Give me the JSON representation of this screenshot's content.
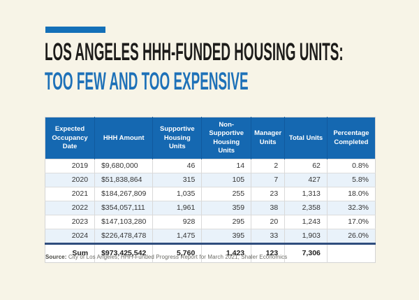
{
  "page": {
    "background_color": "#f7f4e7"
  },
  "header": {
    "accent_bar_color": "#1470b8",
    "title_line1": "LOS ANGELES HHH-FUNDED HOUSING UNITS:",
    "title_line2": "TOO FEW AND TOO EXPENSIVE",
    "title_color": "#1d1c1a",
    "subtitle_color": "#1e71b8"
  },
  "table": {
    "header_bg_color": "#1568b1",
    "header_text_color": "#ffffff",
    "alt_row_bg_color": "#e9f2fa",
    "row_border_color": "#d9d9d9",
    "sum_separator_color": "#2f4d7d",
    "columns": [
      "Expected Occupancy Date",
      "HHH Amount",
      "Supportive Housing Units",
      "Non-Supportive Housing Units",
      "Manager Units",
      "Total Units",
      "Percentage Completed"
    ],
    "rows": [
      [
        "2019",
        "$9,680,000",
        "46",
        "14",
        "2",
        "62",
        "0.8%"
      ],
      [
        "2020",
        "$51,838,864",
        "315",
        "105",
        "7",
        "427",
        "5.8%"
      ],
      [
        "2021",
        "$184,267,809",
        "1,035",
        "255",
        "23",
        "1,313",
        "18.0%"
      ],
      [
        "2022",
        "$354,057,111",
        "1,961",
        "359",
        "38",
        "2,358",
        "32.3%"
      ],
      [
        "2023",
        "$147,103,280",
        "928",
        "295",
        "20",
        "1,243",
        "17.0%"
      ],
      [
        "2024",
        "$226,478,478",
        "1,475",
        "395",
        "33",
        "1,903",
        "26.0%"
      ]
    ],
    "sum_row": [
      "Sum",
      "$973,425,542",
      "5,760",
      "1,423",
      "123",
      "7,306",
      ""
    ]
  },
  "footer": {
    "source_label": "Source:",
    "source_text": "City of Los Angeles, HHH-Funded Progress Report for March 2021, Shaler Economics"
  },
  "chart_data": {
    "type": "table",
    "title": "Los Angeles HHH-Funded Housing Units: Too Few and Too Expensive",
    "columns": [
      "Expected Occupancy Date",
      "HHH Amount",
      "Supportive Housing Units",
      "Non-Supportive Housing Units",
      "Manager Units",
      "Total Units",
      "Percentage Completed"
    ],
    "rows": [
      [
        "2019",
        "$9,680,000",
        46,
        14,
        2,
        62,
        "0.8%"
      ],
      [
        "2020",
        "$51,838,864",
        315,
        105,
        7,
        427,
        "5.8%"
      ],
      [
        "2021",
        "$184,267,809",
        1035,
        255,
        23,
        1313,
        "18.0%"
      ],
      [
        "2022",
        "$354,057,111",
        1961,
        359,
        38,
        2358,
        "32.3%"
      ],
      [
        "2023",
        "$147,103,280",
        928,
        295,
        20,
        1243,
        "17.0%"
      ],
      [
        "2024",
        "$226,478,478",
        1475,
        395,
        33,
        1903,
        "26.0%"
      ]
    ],
    "sum": [
      "Sum",
      "$973,425,542",
      5760,
      1423,
      123,
      7306,
      null
    ],
    "source": "City of Los Angeles, HHH-Funded Progress Report for March 2021, Shaler Economics"
  }
}
